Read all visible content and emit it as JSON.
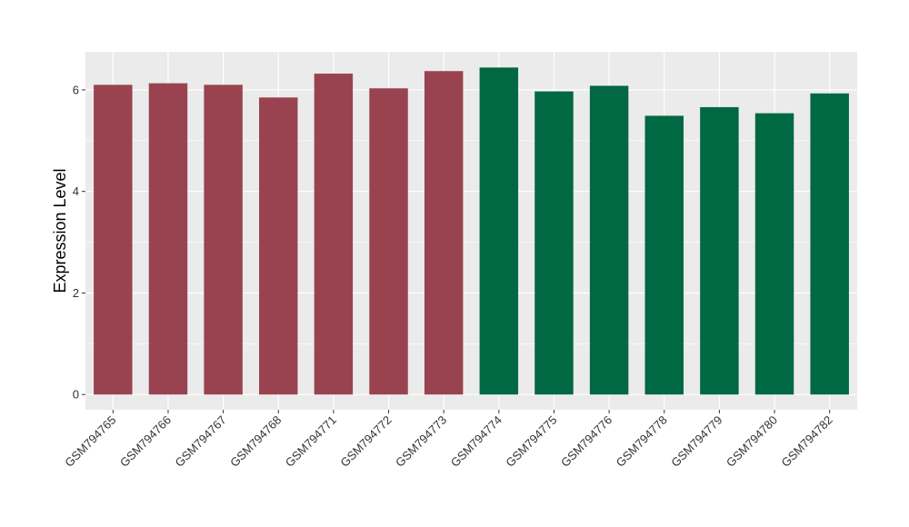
{
  "chart_data": {
    "type": "bar",
    "title": "",
    "xlabel": "",
    "ylabel": "Expression Level",
    "ylim": [
      -0.3,
      6.75
    ],
    "yticks": [
      0,
      2,
      4,
      6
    ],
    "grid": true,
    "legend": "none",
    "background": "#EBEBEB",
    "categories": [
      "GSM794765",
      "GSM794766",
      "GSM794767",
      "GSM794768",
      "GSM794771",
      "GSM794772",
      "GSM794773",
      "GSM794774",
      "GSM794775",
      "GSM794776",
      "GSM794778",
      "GSM794779",
      "GSM794780",
      "GSM794782"
    ],
    "values": [
      6.1,
      6.13,
      6.1,
      5.85,
      6.32,
      6.03,
      6.37,
      6.44,
      5.97,
      6.08,
      5.49,
      5.66,
      5.54,
      5.93
    ],
    "bar_colors": [
      "#9A4350",
      "#9A4350",
      "#9A4350",
      "#9A4350",
      "#9A4350",
      "#9A4350",
      "#9A4350",
      "#006843",
      "#006843",
      "#006843",
      "#006843",
      "#006843",
      "#006843",
      "#006843"
    ]
  }
}
